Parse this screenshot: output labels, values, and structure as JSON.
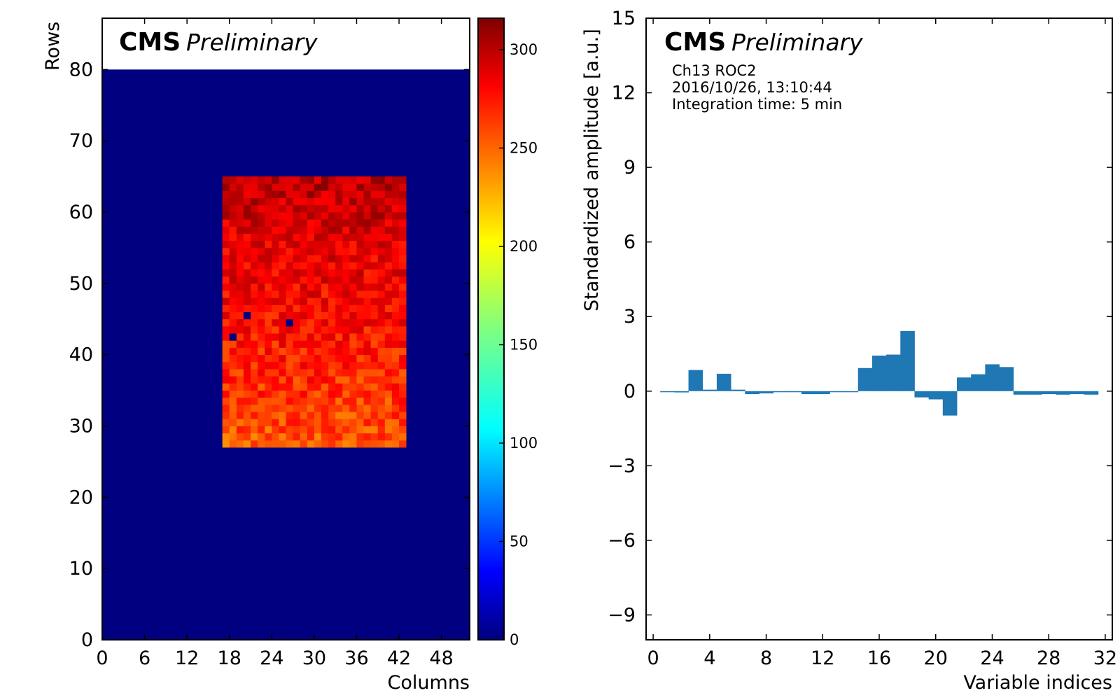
{
  "chart_data": [
    {
      "type": "heatmap",
      "experiment_label": "CMS",
      "status_label": "Preliminary",
      "xlabel": "Columns",
      "ylabel": "Rows",
      "xlim": [
        0,
        52
      ],
      "ylim": [
        0,
        80
      ],
      "x_ticks": [
        "0",
        "6",
        "12",
        "18",
        "24",
        "30",
        "36",
        "42",
        "48"
      ],
      "y_ticks": [
        "0",
        "10",
        "20",
        "30",
        "40",
        "50",
        "60",
        "70",
        "80"
      ],
      "colorbar": {
        "colormap": "jet",
        "range": [
          0,
          316
        ],
        "ticks": [
          "0",
          "50",
          "100",
          "150",
          "200",
          "250",
          "300"
        ]
      },
      "background_value": 0,
      "active_region": {
        "col_start": 17,
        "col_end": 43,
        "row_start": 27,
        "row_end": 65
      },
      "value_profile": {
        "row_27": 250,
        "row_35": 262,
        "row_45": 275,
        "row_55": 285,
        "row_64": 298
      },
      "dead_pixels": [
        {
          "col": 20,
          "row": 45
        },
        {
          "col": 26,
          "row": 44
        },
        {
          "col": 18,
          "row": 42
        }
      ]
    },
    {
      "type": "bar",
      "experiment_label": "CMS",
      "status_label": "Preliminary",
      "annotations": [
        "Ch13 ROC2",
        "2016/10/26, 13:10:44",
        "Integration time: 5 min"
      ],
      "xlabel": "Variable indices",
      "ylabel": "Standardized amplitude [a.u.]",
      "xlim": [
        -0.5,
        32.5
      ],
      "ylim": [
        -10,
        15
      ],
      "x_ticks": [
        "0",
        "4",
        "8",
        "12",
        "16",
        "20",
        "24",
        "28",
        "32"
      ],
      "y_ticks": [
        "−9",
        "−6",
        "−3",
        "0",
        "3",
        "6",
        "9",
        "12",
        "15"
      ],
      "bar_color": "#1f77b4",
      "categories": [
        1,
        2,
        3,
        4,
        5,
        6,
        7,
        8,
        9,
        10,
        11,
        12,
        13,
        14,
        15,
        16,
        17,
        18,
        19,
        20,
        21,
        22,
        23,
        24,
        25,
        26,
        27,
        28,
        29,
        30,
        31
      ],
      "values": [
        -0.03,
        -0.05,
        0.85,
        0.06,
        0.7,
        0.06,
        -0.12,
        -0.09,
        -0.03,
        -0.03,
        -0.12,
        -0.12,
        -0.04,
        -0.04,
        0.93,
        1.43,
        1.47,
        2.42,
        -0.25,
        -0.33,
        -0.98,
        0.55,
        0.68,
        1.08,
        0.97,
        -0.14,
        -0.14,
        -0.12,
        -0.14,
        -0.12,
        -0.14
      ]
    }
  ]
}
